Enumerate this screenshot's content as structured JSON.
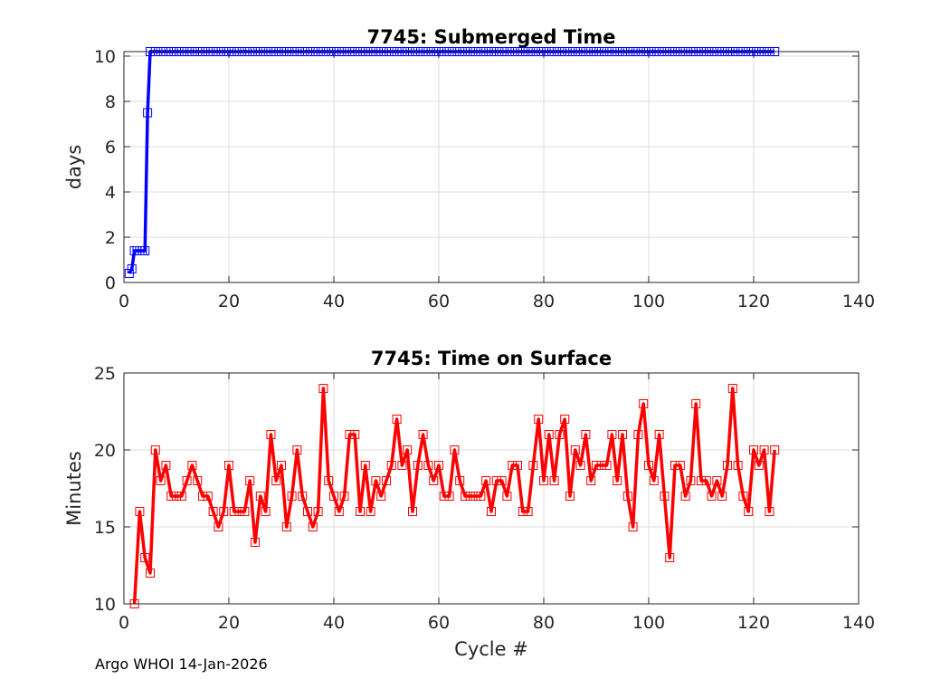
{
  "chart_data": [
    {
      "type": "line",
      "title": "7745: Submerged Time",
      "xlabel": "",
      "ylabel": "days",
      "xlim": [
        0,
        140
      ],
      "ylim": [
        0,
        10.2
      ],
      "xticks": [
        0,
        20,
        40,
        60,
        80,
        100,
        120,
        140
      ],
      "yticks": [
        0,
        2,
        4,
        6,
        8,
        10
      ],
      "grid": true,
      "color": "#0000ff",
      "marker": "square",
      "series": [
        {
          "name": "Submerged Time",
          "x": [
            1,
            1.5,
            2,
            2.5,
            3,
            3.5,
            4,
            4.5,
            5,
            6,
            7,
            8,
            9,
            10,
            11,
            12,
            13,
            14,
            15,
            16,
            17,
            18,
            19,
            20,
            21,
            22,
            23,
            24,
            25,
            26,
            27,
            28,
            29,
            30,
            31,
            32,
            33,
            34,
            35,
            36,
            37,
            38,
            39,
            40,
            41,
            42,
            43,
            44,
            45,
            46,
            47,
            48,
            49,
            50,
            51,
            52,
            53,
            54,
            55,
            56,
            57,
            58,
            59,
            60,
            61,
            62,
            63,
            64,
            65,
            66,
            67,
            68,
            69,
            70,
            71,
            72,
            73,
            74,
            75,
            76,
            77,
            78,
            79,
            80,
            81,
            82,
            83,
            84,
            85,
            86,
            87,
            88,
            89,
            90,
            91,
            92,
            93,
            94,
            95,
            96,
            97,
            98,
            99,
            100,
            101,
            102,
            103,
            104,
            105,
            106,
            107,
            108,
            109,
            110,
            111,
            112,
            113,
            114,
            115,
            116,
            117,
            118,
            119,
            120,
            121,
            122,
            123,
            124
          ],
          "y": [
            0.4,
            0.6,
            1.4,
            1.4,
            1.4,
            1.4,
            1.4,
            7.5,
            10.2,
            10.2,
            10.2,
            10.2,
            10.2,
            10.2,
            10.2,
            10.2,
            10.2,
            10.2,
            10.2,
            10.2,
            10.2,
            10.2,
            10.2,
            10.2,
            10.2,
            10.2,
            10.2,
            10.2,
            10.2,
            10.2,
            10.2,
            10.2,
            10.2,
            10.2,
            10.2,
            10.2,
            10.2,
            10.2,
            10.2,
            10.2,
            10.2,
            10.2,
            10.2,
            10.2,
            10.2,
            10.2,
            10.2,
            10.2,
            10.2,
            10.2,
            10.2,
            10.2,
            10.2,
            10.2,
            10.2,
            10.2,
            10.2,
            10.2,
            10.2,
            10.2,
            10.2,
            10.2,
            10.2,
            10.2,
            10.2,
            10.2,
            10.2,
            10.2,
            10.2,
            10.2,
            10.2,
            10.2,
            10.2,
            10.2,
            10.2,
            10.2,
            10.2,
            10.2,
            10.2,
            10.2,
            10.2,
            10.2,
            10.2,
            10.2,
            10.2,
            10.2,
            10.2,
            10.2,
            10.2,
            10.2,
            10.2,
            10.2,
            10.2,
            10.2,
            10.2,
            10.2,
            10.2,
            10.2,
            10.2,
            10.2,
            10.2,
            10.2,
            10.2,
            10.2,
            10.2,
            10.2,
            10.2,
            10.2,
            10.2,
            10.2,
            10.2,
            10.2,
            10.2,
            10.2,
            10.2,
            10.2,
            10.2,
            10.2,
            10.2,
            10.2,
            10.2,
            10.2,
            10.2,
            10.2,
            10.2,
            10.2,
            10.2,
            10.2
          ]
        }
      ]
    },
    {
      "type": "line",
      "title": "7745: Time on Surface",
      "xlabel": "Cycle #",
      "ylabel": "Minutes",
      "xlim": [
        0,
        140
      ],
      "ylim": [
        10,
        25
      ],
      "xticks": [
        0,
        20,
        40,
        60,
        80,
        100,
        120,
        140
      ],
      "yticks": [
        10,
        15,
        20,
        25
      ],
      "grid": true,
      "color": "#ff0000",
      "marker": "square",
      "series": [
        {
          "name": "Time on Surface",
          "x": [
            2,
            3,
            4,
            5,
            6,
            7,
            8,
            9,
            10,
            11,
            12,
            13,
            14,
            15,
            16,
            17,
            18,
            19,
            20,
            21,
            22,
            23,
            24,
            25,
            26,
            27,
            28,
            29,
            30,
            31,
            32,
            33,
            34,
            35,
            36,
            37,
            38,
            39,
            40,
            41,
            42,
            43,
            44,
            45,
            46,
            47,
            48,
            49,
            50,
            51,
            52,
            53,
            54,
            55,
            56,
            57,
            58,
            59,
            60,
            61,
            62,
            63,
            64,
            65,
            66,
            67,
            68,
            69,
            70,
            71,
            72,
            73,
            74,
            75,
            76,
            77,
            78,
            79,
            80,
            81,
            82,
            83,
            84,
            85,
            86,
            87,
            88,
            89,
            90,
            91,
            92,
            93,
            94,
            95,
            96,
            97,
            98,
            99,
            100,
            101,
            102,
            103,
            104,
            105,
            106,
            107,
            108,
            109,
            110,
            111,
            112,
            113,
            114,
            115,
            116,
            117,
            118,
            119,
            120,
            121,
            122,
            123,
            124
          ],
          "y": [
            10,
            16,
            13,
            12,
            20,
            18,
            19,
            17,
            17,
            17,
            18,
            19,
            18,
            17,
            17,
            16,
            15,
            16,
            19,
            16,
            16,
            16,
            18,
            14,
            17,
            16,
            21,
            18,
            19,
            15,
            17,
            20,
            17,
            16,
            15,
            16,
            24,
            18,
            17,
            16,
            17,
            21,
            21,
            16,
            19,
            16,
            18,
            17,
            18,
            19,
            22,
            19,
            20,
            16,
            19,
            21,
            19,
            18,
            19,
            17,
            17,
            20,
            18,
            17,
            17,
            17,
            17,
            18,
            16,
            18,
            18,
            17,
            19,
            19,
            16,
            16,
            19,
            22,
            18,
            21,
            18,
            21,
            22,
            17,
            20,
            19,
            21,
            18,
            19,
            19,
            19,
            21,
            18,
            21,
            17,
            15,
            21,
            23,
            19,
            18,
            21,
            17,
            13,
            19,
            19,
            17,
            18,
            23,
            18,
            18,
            17,
            18,
            17,
            19,
            24,
            19,
            17,
            16,
            20,
            19,
            20,
            16,
            20
          ]
        }
      ]
    }
  ],
  "footer": "Argo WHOI 14-Jan-2026"
}
